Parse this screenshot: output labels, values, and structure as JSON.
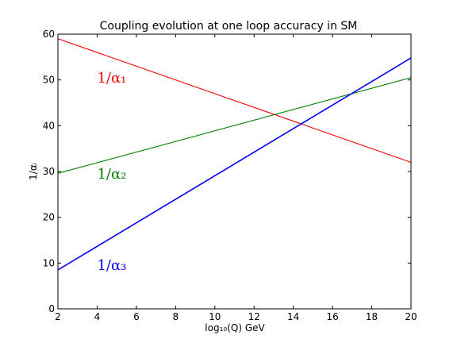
{
  "chart_data": {
    "type": "line",
    "title": "Coupling evolution at one loop accuracy in SM",
    "xlabel": "log₁₀(Q) GeV",
    "ylabel": "1/αᵢ",
    "xlim": [
      2,
      20
    ],
    "ylim": [
      0,
      60
    ],
    "xticks": [
      "2",
      "4",
      "6",
      "8",
      "10",
      "12",
      "14",
      "16",
      "18",
      "20"
    ],
    "yticks": [
      "0",
      "10",
      "20",
      "30",
      "40",
      "50",
      "60"
    ],
    "grid": false,
    "series": [
      {
        "name": "1/α₁",
        "color": "#ff0000",
        "x": [
          2,
          20
        ],
        "y": [
          59.0,
          32.0
        ]
      },
      {
        "name": "1/α₂",
        "color": "#008000",
        "x": [
          2,
          20
        ],
        "y": [
          29.6,
          50.5
        ]
      },
      {
        "name": "1/α₃",
        "color": "#0000ff",
        "x": [
          2,
          20
        ],
        "y": [
          8.5,
          54.8
        ]
      }
    ],
    "annotations": [
      {
        "text": "1/α₁",
        "color": "#ff0000",
        "x": 4.0,
        "y": 50.5
      },
      {
        "text": "1/α₂",
        "color": "#008000",
        "x": 4.0,
        "y": 29.5
      },
      {
        "text": "1/α₃",
        "color": "#0000ff",
        "x": 4.0,
        "y": 9.5
      }
    ]
  }
}
